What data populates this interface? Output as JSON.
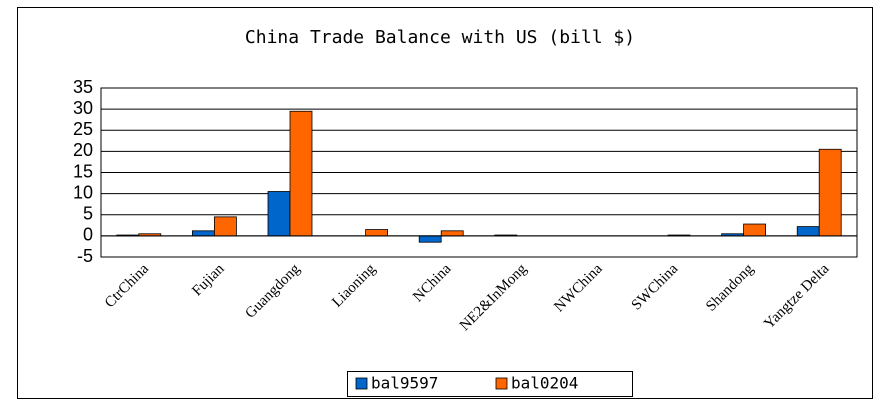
{
  "chart_data": {
    "type": "bar",
    "title": "China Trade Balance with US (bill $)",
    "categories": [
      "CtrChina",
      "Fujian",
      "Guangdong",
      "Liaoning",
      "NChina",
      "NE2&InMong",
      "NWChina",
      "SWChina",
      "Shandong",
      "Yangtze Delta"
    ],
    "series": [
      {
        "name": "bal9597",
        "color": "#0066cc",
        "values": [
          0.2,
          1.2,
          10.5,
          0,
          -1.5,
          0.2,
          0,
          0,
          0.5,
          2.2
        ]
      },
      {
        "name": "bal0204",
        "color": "#ff6600",
        "values": [
          0.5,
          4.5,
          29.5,
          1.5,
          1.2,
          0,
          0,
          0.2,
          2.8,
          20.5
        ]
      }
    ],
    "ylim": [
      -5,
      35
    ],
    "yticks": [
      -5,
      0,
      5,
      10,
      15,
      20,
      25,
      30,
      35
    ],
    "grid": true
  }
}
